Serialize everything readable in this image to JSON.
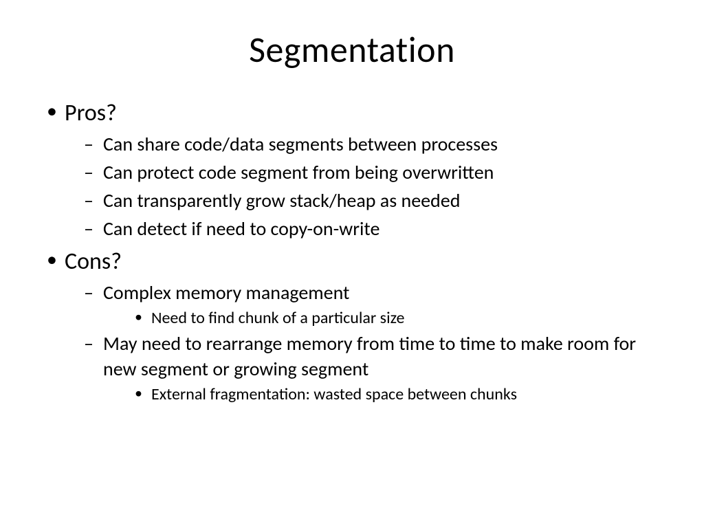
{
  "title": "Segmentation",
  "bullets": {
    "pros_label": "Pros?",
    "pros_items": [
      "Can share code/data segments between processes",
      "Can protect code segment from being overwritten",
      "Can transparently grow stack/heap as needed",
      "Can detect if need to copy-on-write"
    ],
    "cons_label": "Cons?",
    "cons_items": [
      {
        "text": "Complex memory management",
        "sub": [
          "Need to find chunk of a particular size"
        ]
      },
      {
        "text": "May need to rearrange memory from time to time to make room for new segment or growing segment",
        "sub": [
          "External fragmentation: wasted space between chunks"
        ]
      }
    ]
  },
  "style": {
    "background_color": "#ffffff",
    "text_color": "#000000",
    "title_fontsize": 52,
    "level1_fontsize": 34,
    "level2_fontsize": 28,
    "level3_fontsize": 24,
    "font_family": "Calibri"
  }
}
